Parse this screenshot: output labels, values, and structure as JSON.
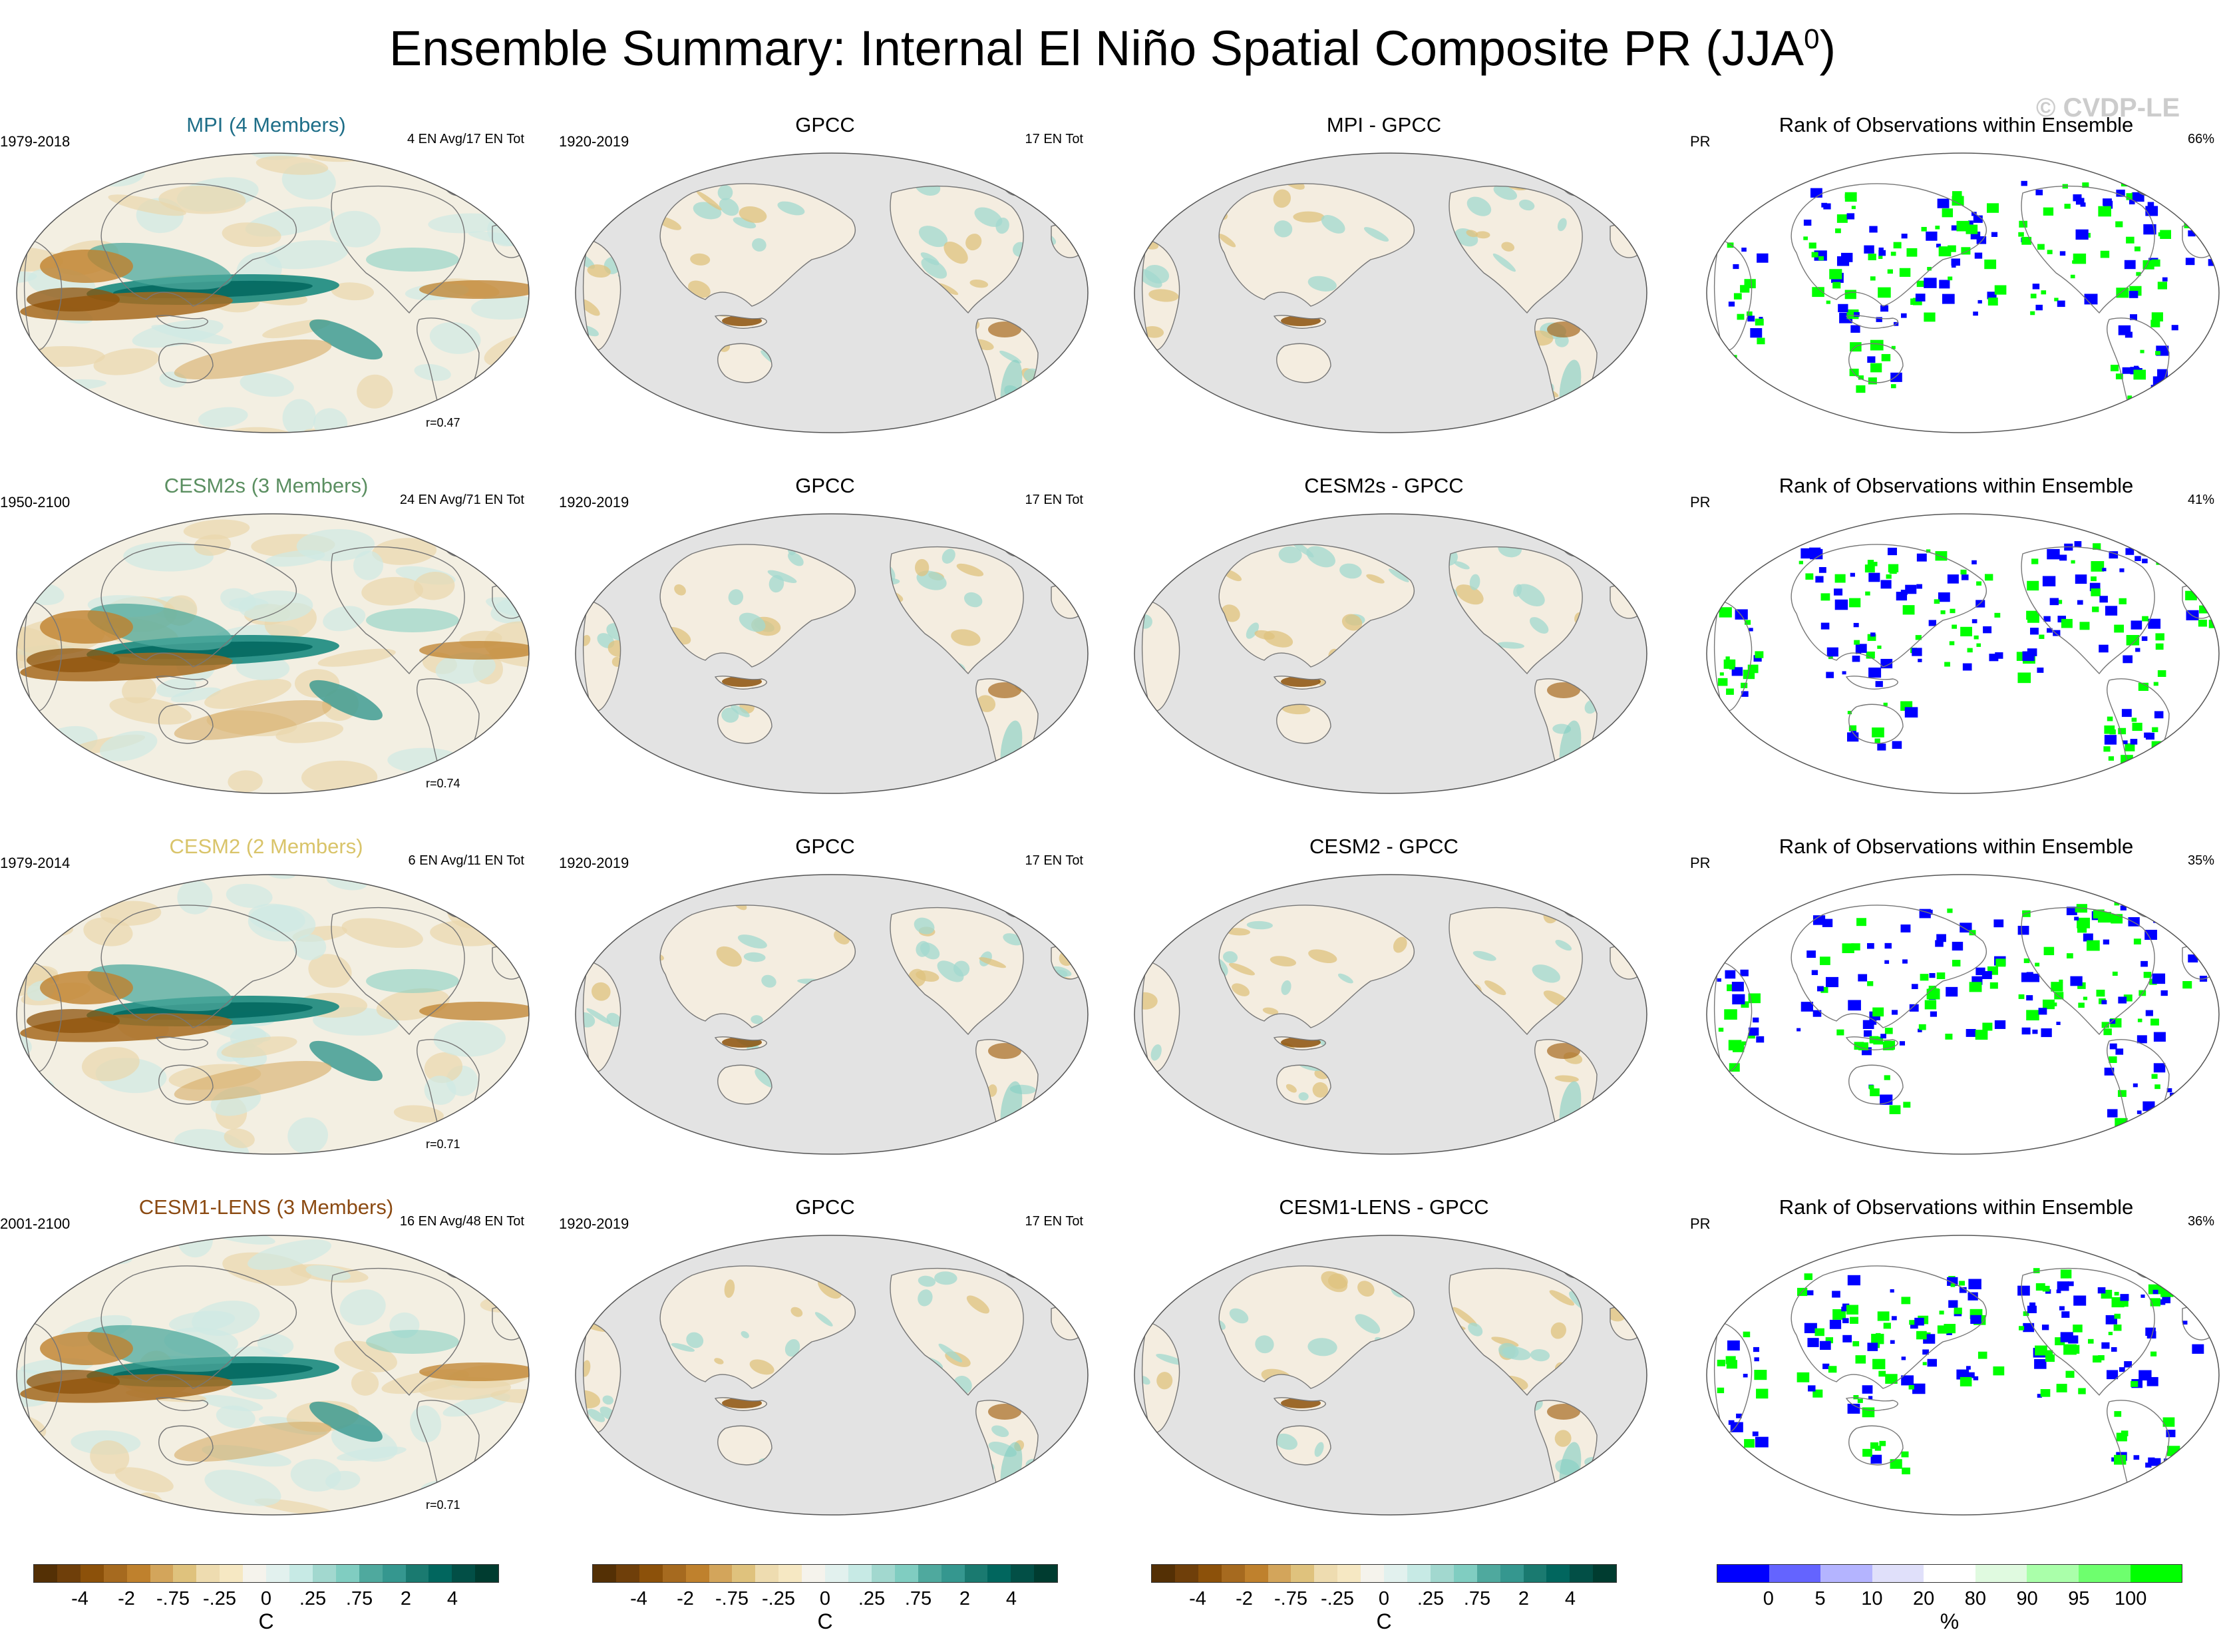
{
  "header": {
    "title": "Ensemble Summary: Internal El Niño Spatial Composite PR (JJA",
    "title_sup": "0",
    "title_end": ")",
    "copyright": "© CVDP-LE"
  },
  "rows": [
    {
      "model": {
        "title": "MPI (4 Members)",
        "title_color": "#1e6e88",
        "period": "1979-2018",
        "count": "4 EN Avg/17 EN Tot",
        "corr": "r=0.47"
      },
      "obs": {
        "title": "GPCC",
        "period": "1920-2019",
        "count": "17 EN Tot"
      },
      "diff": {
        "title": "MPI - GPCC"
      },
      "rank": {
        "title": "Rank of Observations within Ensemble",
        "var": "PR",
        "pct": "66%"
      }
    },
    {
      "model": {
        "title": "CESM2s (3 Members)",
        "title_color": "#5b8f61",
        "period": "1950-2100",
        "count": "24 EN Avg/71 EN Tot",
        "corr": "r=0.74"
      },
      "obs": {
        "title": "GPCC",
        "period": "1920-2019",
        "count": "17 EN Tot"
      },
      "diff": {
        "title": "CESM2s - GPCC"
      },
      "rank": {
        "title": "Rank of Observations within Ensemble",
        "var": "PR",
        "pct": "41%"
      }
    },
    {
      "model": {
        "title": "CESM2 (2 Members)",
        "title_color": "#d9c46a",
        "period": "1979-2014",
        "count": "6 EN Avg/11 EN Tot",
        "corr": "r=0.71"
      },
      "obs": {
        "title": "GPCC",
        "period": "1920-2019",
        "count": "17 EN Tot"
      },
      "diff": {
        "title": "CESM2 - GPCC"
      },
      "rank": {
        "title": "Rank of Observations within Ensemble",
        "var": "PR",
        "pct": "35%"
      }
    },
    {
      "model": {
        "title": "CESM1-LENS (3 Members)",
        "title_color": "#8b4a12",
        "period": "2001-2100",
        "count": "16 EN Avg/48 EN Tot",
        "corr": "r=0.71"
      },
      "obs": {
        "title": "GPCC",
        "period": "1920-2019",
        "count": "17 EN Tot"
      },
      "diff": {
        "title": "CESM1-LENS - GPCC"
      },
      "rank": {
        "title": "Rank of Observations within Ensemble",
        "var": "PR",
        "pct": "36%"
      }
    }
  ],
  "colorbars": {
    "brbg": {
      "colors": [
        "#543005",
        "#6f3f0a",
        "#8c510a",
        "#a66a1f",
        "#bf812d",
        "#d3a55b",
        "#dfc27d",
        "#eedcb0",
        "#f6e8c3",
        "#f5f3ec",
        "#e2f1ee",
        "#c7eae5",
        "#a2d8cf",
        "#80cdc1",
        "#4fa99e",
        "#35978f",
        "#1a7a70",
        "#01665e",
        "#024f46",
        "#003c30"
      ],
      "ticks": [
        "-4",
        "-2",
        "-.75",
        "-.25",
        "0",
        ".25",
        ".75",
        "2",
        "4"
      ],
      "unit": "C"
    },
    "rank": {
      "colors": [
        "#0000ff",
        "#6464ff",
        "#b4b4ff",
        "#e0e0fa",
        "#ffffff",
        "#e0fae0",
        "#aaffaa",
        "#6eff6e",
        "#00ff00"
      ],
      "ticks": [
        "0",
        "5",
        "10",
        "20",
        "80",
        "90",
        "95",
        "100"
      ],
      "unit": "%"
    }
  }
}
